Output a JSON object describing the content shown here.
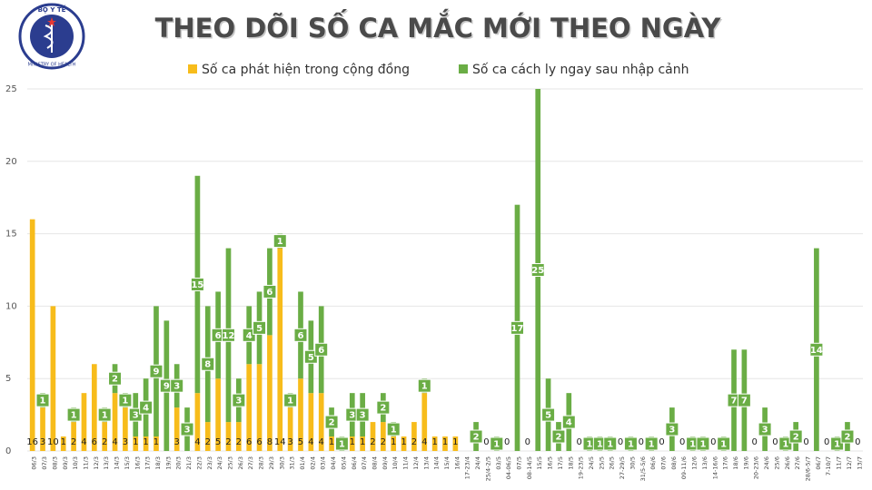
{
  "logo": {
    "top": "BỘ Y TẾ",
    "bottom": "MINISTRY OF HEALTH"
  },
  "chart_data": {
    "type": "stacked-bar",
    "title": "THEO DÕI SỐ CA MẮC MỚI THEO NGÀY",
    "categories": [
      "06/3",
      "07/3",
      "08/3",
      "09/3",
      "10/3",
      "11/3",
      "12/3",
      "13/3",
      "14/3",
      "15/3",
      "16/3",
      "17/3",
      "18/3",
      "19/3",
      "20/3",
      "21/3",
      "22/3",
      "23/3",
      "24/3",
      "25/3",
      "26/3",
      "27/3",
      "28/3",
      "29/3",
      "30/3",
      "31/3",
      "01/4",
      "02/4",
      "03/4",
      "04/4",
      "05/4",
      "06/4",
      "07/4",
      "08/4",
      "09/4",
      "10/4",
      "11/4",
      "12/4",
      "13/4",
      "14/4",
      "15/4",
      "16/4",
      "17-23/4",
      "24/4",
      "25/4-2/5",
      "03/5",
      "04-06/5",
      "07/5",
      "08-14/5",
      "15/5",
      "16/5",
      "17/5",
      "18/5",
      "19-23/5",
      "24/5",
      "25/5",
      "26/5",
      "27-29/5",
      "30/5",
      "31/5-5/6",
      "06/6",
      "07/6",
      "08/6",
      "09-11/6",
      "12/6",
      "13/6",
      "14-16/6",
      "17/6",
      "18/6",
      "19/6",
      "20-23/6",
      "24/6",
      "25/6",
      "26/6",
      "27/6",
      "28/6-5/7",
      "06/7",
      "7-10/7",
      "11/7",
      "12/7",
      "13/7"
    ],
    "series": [
      {
        "name": "Số ca phát hiện trong cộng đồng",
        "color": "#f7bc1b",
        "values": [
          16,
          3,
          10,
          1,
          2,
          4,
          6,
          2,
          4,
          3,
          1,
          1,
          1,
          null,
          3,
          null,
          4,
          2,
          5,
          2,
          2,
          6,
          6,
          8,
          14,
          3,
          5,
          4,
          4,
          1,
          0,
          1,
          1,
          2,
          2,
          1,
          1,
          2,
          4,
          1,
          1,
          1,
          null,
          null,
          null,
          null,
          null,
          null,
          null,
          null,
          null,
          null,
          null,
          null,
          null,
          null,
          null,
          null,
          null,
          null,
          null,
          null,
          null,
          null,
          null,
          null,
          null,
          null,
          null,
          null,
          null,
          null,
          null,
          null,
          null,
          null,
          null,
          null,
          null,
          null,
          null
        ]
      },
      {
        "name": "Số ca cách ly ngay sau nhập cảnh",
        "color": "#6aad45",
        "values": [
          null,
          1,
          null,
          null,
          1,
          null,
          null,
          1,
          2,
          1,
          3,
          4,
          9,
          9,
          3,
          3,
          15,
          8,
          6,
          12,
          3,
          4,
          5,
          6,
          1,
          1,
          6,
          5,
          6,
          2,
          1,
          3,
          3,
          null,
          2,
          1,
          null,
          null,
          1,
          null,
          null,
          null,
          null,
          2,
          0,
          1,
          0,
          17,
          0,
          25,
          5,
          2,
          4,
          0,
          1,
          1,
          1,
          0,
          1,
          0,
          1,
          0,
          3,
          0,
          1,
          1,
          0,
          1,
          7,
          7,
          0,
          3,
          0,
          1,
          2,
          0,
          14,
          0,
          1,
          2,
          0
        ]
      }
    ],
    "ylim": [
      0,
      25
    ],
    "yticks": [
      0,
      5,
      10,
      15,
      20,
      25
    ],
    "grid": true
  }
}
